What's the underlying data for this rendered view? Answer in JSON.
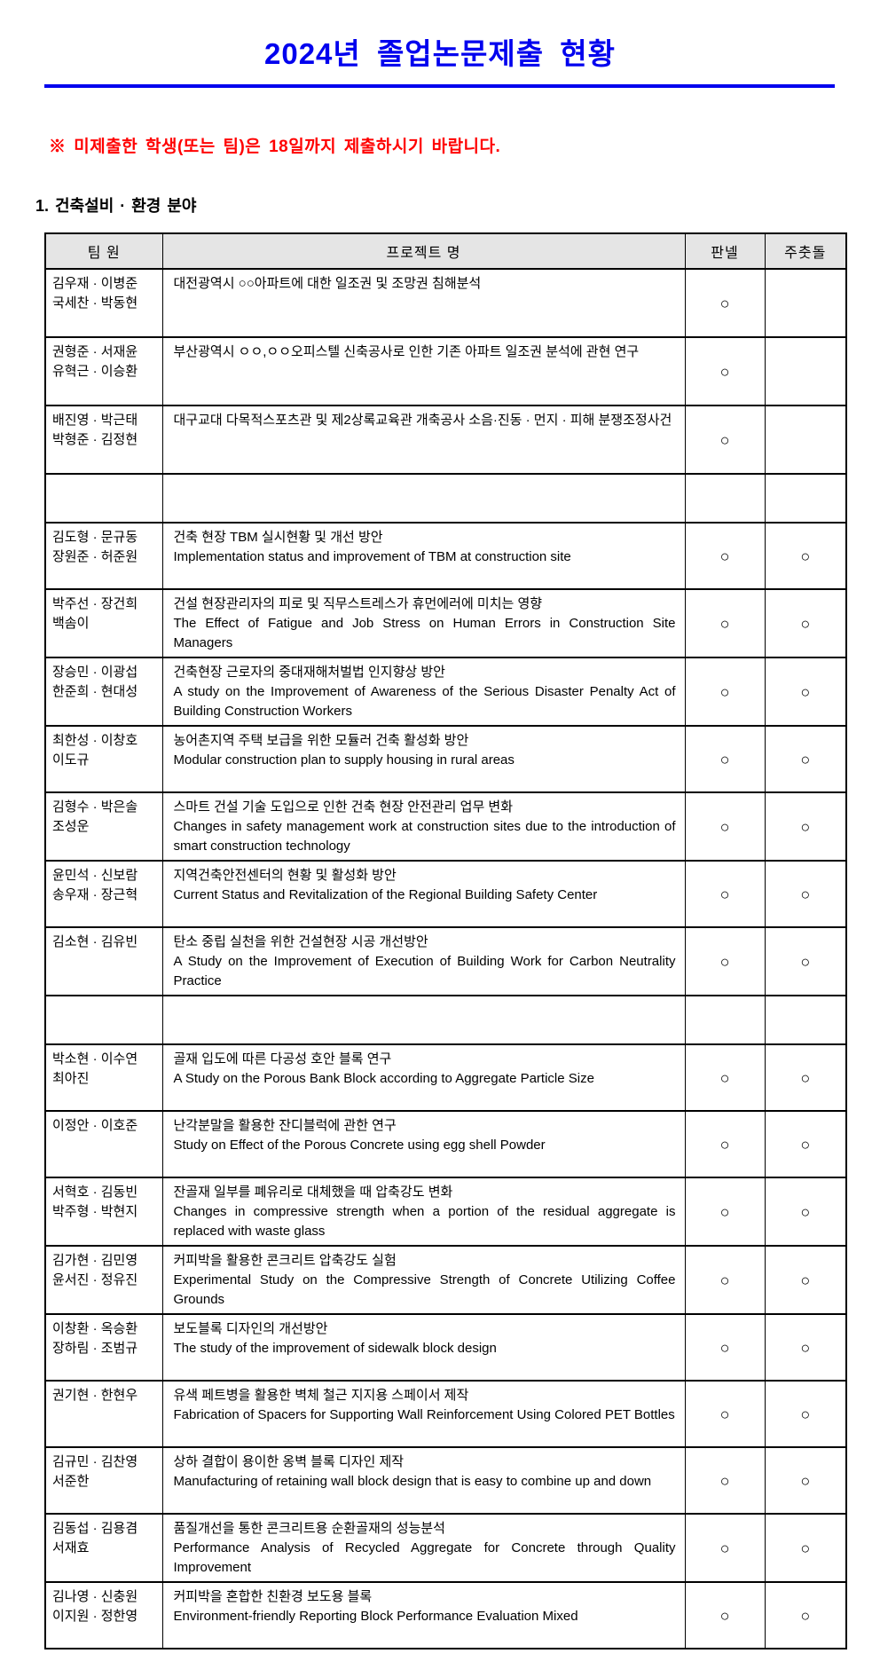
{
  "header": {
    "title": "2024년  졸업논문제출  현황",
    "notice": "※ 미제출한 학생(또는 팀)은 18일까지 제출하시기 바랍니다."
  },
  "section": {
    "title": "1. 건축설비 · 환경 분야"
  },
  "table": {
    "headers": [
      "팀 원",
      "프로젝트 명",
      "판넬",
      "주춧돌"
    ],
    "check_mark": "○",
    "rows": [
      {
        "empty": false,
        "team": [
          "김우재 · 이병준",
          "국세찬 · 박동현"
        ],
        "project_ko": "대전광역시 ○○아파트에 대한 일조권 및 조망권 침해분석",
        "project_en": "",
        "panel": true,
        "cornerstone": false
      },
      {
        "empty": false,
        "team": [
          "권형준 · 서재윤",
          "유혁근 · 이승환"
        ],
        "project_ko": "부산광역시 ㅇㅇ,ㅇㅇ오피스텔 신축공사로 인한 기존 아파트 일조권 분석에 관현 연구",
        "project_en": "",
        "panel": true,
        "cornerstone": false
      },
      {
        "empty": false,
        "team": [
          "배진영 · 박근태",
          "박형준 · 김정현"
        ],
        "project_ko": "대구교대 다목적스포츠관 및 제2상록교육관 개축공사 소음·진동 · 먼지 · 피해 분쟁조정사건",
        "project_en": "",
        "panel": true,
        "cornerstone": false
      },
      {
        "empty": true,
        "team": [],
        "project_ko": "",
        "project_en": "",
        "panel": false,
        "cornerstone": false
      },
      {
        "empty": false,
        "team": [
          "김도형 · 문규동",
          "장원준 · 허준원"
        ],
        "project_ko": "건축 현장 TBM 실시현황 및 개선 방안",
        "project_en": "Implementation status and improvement of TBM at construction site",
        "panel": true,
        "cornerstone": true
      },
      {
        "empty": false,
        "team": [
          "박주선 · 장건희",
          "백솜이"
        ],
        "project_ko": "건설 현장관리자의 피로 및 직무스트레스가 휴먼에러에 미치는 영향",
        "project_en": "The Effect of Fatigue and Job Stress on Human Errors in Construction Site Managers",
        "panel": true,
        "cornerstone": true
      },
      {
        "empty": false,
        "team": [
          "장승민 · 이광섭",
          "한준희 · 현대성"
        ],
        "project_ko": "건축현장 근로자의 중대재해처벌법 인지향상 방안",
        "project_en": "A study on the Improvement of Awareness of the Serious Disaster Penalty Act of Building Construction Workers",
        "panel": true,
        "cornerstone": true
      },
      {
        "empty": false,
        "team": [
          "최한성 · 이창호",
          "이도규"
        ],
        "project_ko": "농어촌지역 주택 보급을 위한 모듈러 건축 활성화 방안",
        "project_en": "Modular construction plan to supply housing in rural areas",
        "panel": true,
        "cornerstone": true
      },
      {
        "empty": false,
        "team": [
          "김형수 · 박은솔",
          "조성운"
        ],
        "project_ko": "스마트 건설 기술 도입으로 인한 건축 현장 안전관리 업무 변화",
        "project_en": "Changes in safety management work at construction sites due to the introduction of smart construction technology",
        "panel": true,
        "cornerstone": true
      },
      {
        "empty": false,
        "team": [
          "윤민석 · 신보람",
          "송우재 · 장근혁"
        ],
        "project_ko": "지역건축안전센터의 현황 및 활성화 방안",
        "project_en": "Current Status and Revitalization of the Regional Building Safety Center",
        "panel": true,
        "cornerstone": true
      },
      {
        "empty": false,
        "team": [
          "김소현 · 김유빈"
        ],
        "project_ko": "탄소 중립 실천을 위한 건설현장 시공 개선방안",
        "project_en": "A Study on the Improvement of Execution of Building Work for Carbon Neutrality Practice",
        "panel": true,
        "cornerstone": true
      },
      {
        "empty": true,
        "team": [],
        "project_ko": "",
        "project_en": "",
        "panel": false,
        "cornerstone": false
      },
      {
        "empty": false,
        "team": [
          "박소현 · 이수연",
          "최아진"
        ],
        "project_ko": "골재 입도에 따른 다공성 호안 블록 연구",
        "project_en": "A Study on the Porous Bank Block according to Aggregate Particle Size",
        "panel": true,
        "cornerstone": true
      },
      {
        "empty": false,
        "team": [
          "이정안 · 이호준"
        ],
        "project_ko": "난각분말을 활용한 잔디블럭에 관한 연구",
        "project_en": "Study on Effect of the Porous Concrete using egg shell Powder",
        "panel": true,
        "cornerstone": true
      },
      {
        "empty": false,
        "team": [
          "서혁호 · 김동빈",
          "박주형 · 박현지"
        ],
        "project_ko": "잔골재 일부를 폐유리로 대체했을 때 압축강도 변화",
        "project_en": "Changes in compressive strength when a portion of the residual aggregate is replaced with waste glass",
        "panel": true,
        "cornerstone": true
      },
      {
        "empty": false,
        "team": [
          "김가현 · 김민영",
          "윤서진 · 정유진"
        ],
        "project_ko": "커피박을 활용한 콘크리트 압축강도 실험",
        "project_en": "Experimental Study on the Compressive Strength of Concrete Utilizing Coffee Grounds",
        "panel": true,
        "cornerstone": true
      },
      {
        "empty": false,
        "team": [
          "이창환 · 옥승환",
          "장하림 · 조범규"
        ],
        "project_ko": "보도블록 디자인의 개선방안",
        "project_en": "The study of the improvement of sidewalk block design",
        "panel": true,
        "cornerstone": true
      },
      {
        "empty": false,
        "team": [
          "권기현 · 한현우"
        ],
        "project_ko": "유색 페트병을 활용한 벽체 철근 지지용 스페이서 제작",
        "project_en": "Fabrication of Spacers for Supporting Wall Reinforcement Using Colored PET Bottles",
        "panel": true,
        "cornerstone": true
      },
      {
        "empty": false,
        "team": [
          "김규민 · 김찬영",
          "서준한"
        ],
        "project_ko": "상하 결합이 용이한 옹벽 블록 디자인 제작",
        "project_en": "Manufacturing of retaining wall block design that is easy to combine up and down",
        "panel": true,
        "cornerstone": true
      },
      {
        "empty": false,
        "team": [
          "김동섭 · 김용겸",
          "서재효"
        ],
        "project_ko": "품질개선을 통한 콘크리트용 순환골재의 성능분석",
        "project_en": "Performance Analysis of Recycled Aggregate for Concrete through Quality Improvement",
        "panel": true,
        "cornerstone": true
      },
      {
        "empty": false,
        "team": [
          "김나영 · 신충원",
          "이지원 · 정한영"
        ],
        "project_ko": "커피박을 혼합한 친환경 보도용 블록",
        "project_en": "Environment-friendly Reporting Block Performance Evaluation Mixed",
        "panel": true,
        "cornerstone": true
      }
    ]
  }
}
